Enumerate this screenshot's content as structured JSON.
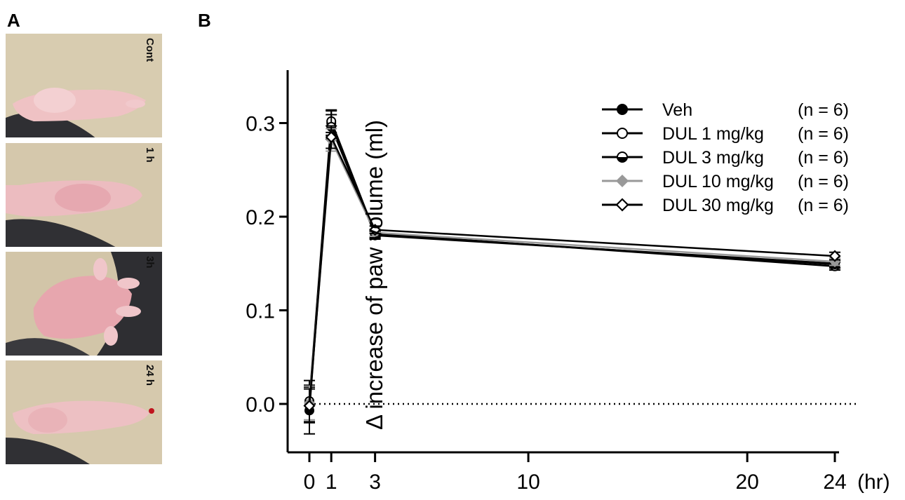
{
  "panel_a": {
    "letter": "A",
    "photos": [
      {
        "label": "Cont"
      },
      {
        "label": "1 h"
      },
      {
        "label": "3h"
      },
      {
        "label": "24 h"
      }
    ]
  },
  "panel_b": {
    "letter": "B"
  },
  "chart_data": {
    "type": "line",
    "title": "",
    "xlabel": "(hr)",
    "ylabel": "Δ increase of paw volume (ml)",
    "x_ticks": [
      0,
      1,
      3,
      10,
      20,
      24
    ],
    "y_ticks": [
      0.0,
      0.1,
      0.2,
      0.3
    ],
    "y_tick_labels": [
      "0.0",
      "0.1",
      "0.2",
      "0.3"
    ],
    "xlim": [
      0,
      24
    ],
    "ylim": [
      -0.05,
      0.35
    ],
    "grid": false,
    "reference_line": {
      "y": 0,
      "style": "dotted"
    },
    "legend_position": "top-right",
    "x": [
      0,
      1,
      3,
      24
    ],
    "series": [
      {
        "name": "Veh",
        "n_label": "(n = 6)",
        "marker": "filled-circle",
        "color": "#000000",
        "values": [
          -0.007,
          0.3,
          0.18,
          0.15
        ],
        "errors": [
          0.025,
          0.013,
          0.004,
          0.004
        ]
      },
      {
        "name": "DUL  1 mg/kg",
        "n_label": "(n = 6)",
        "marker": "open-circle",
        "color": "#000000",
        "values": [
          0.003,
          0.302,
          0.182,
          0.147
        ],
        "errors": [
          0.022,
          0.012,
          0.004,
          0.004
        ]
      },
      {
        "name": "DUL 3 mg/kg",
        "n_label": "(n = 6)",
        "marker": "half-circle",
        "color": "#000000",
        "values": [
          0.0,
          0.296,
          0.181,
          0.149
        ],
        "errors": [
          0.02,
          0.013,
          0.004,
          0.004
        ]
      },
      {
        "name": "DUL 10 mg/kg",
        "n_label": "(n = 6)",
        "marker": "filled-diamond",
        "color": "#999999",
        "values": [
          0.001,
          0.282,
          0.183,
          0.152
        ],
        "errors": [
          0.018,
          0.012,
          0.004,
          0.004
        ]
      },
      {
        "name": "DUL 30 mg/kg",
        "n_label": "(n = 6)",
        "marker": "open-diamond",
        "color": "#000000",
        "values": [
          -0.002,
          0.285,
          0.186,
          0.158
        ],
        "errors": [
          0.018,
          0.012,
          0.004,
          0.004
        ]
      }
    ]
  }
}
